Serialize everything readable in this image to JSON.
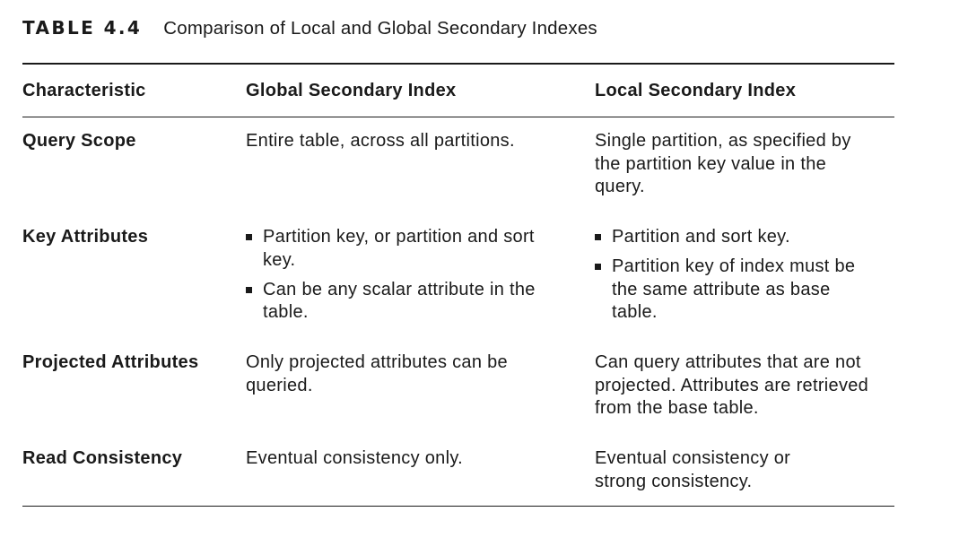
{
  "caption": {
    "label": "TABLE 4.4",
    "title": "Comparison of Local and Global Secondary Indexes"
  },
  "table": {
    "headers": [
      "Characteristic",
      "Global Secondary Index",
      "Local Secondary Index"
    ],
    "rows": [
      {
        "characteristic": "Query Scope",
        "global": "Entire table, across all partitions.",
        "local": "Single partition, as specified by the partition key value in the query."
      },
      {
        "characteristic": "Key Attributes",
        "global_items": [
          "Partition key, or partition and sort key.",
          "Can be any scalar attribute in the table."
        ],
        "local_items": [
          "Partition and sort key.",
          "Partition key of index must be the same attribute as base table."
        ]
      },
      {
        "characteristic": "Projected Attributes",
        "global": "Only projected attributes can be queried.",
        "local": "Can query attributes that are not projected. Attributes are retrieved from the base table."
      },
      {
        "characteristic": "Read Consistency",
        "global": "Eventual consistency only.",
        "local": "Eventual consistency or strong consistency."
      }
    ]
  }
}
